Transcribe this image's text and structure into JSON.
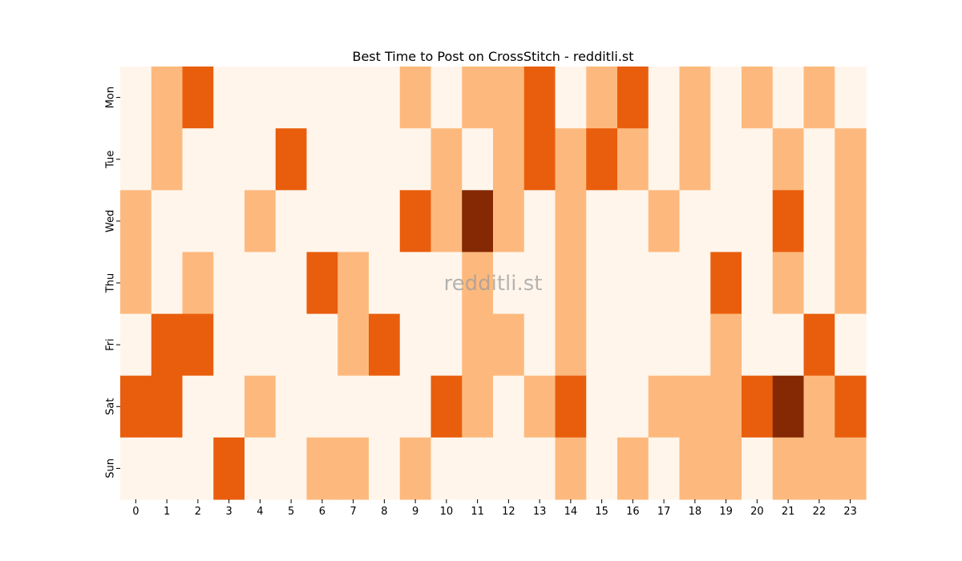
{
  "chart_data": {
    "type": "heatmap",
    "title": "Best Time to Post on CrossStitch - redditli.st",
    "watermark": "redditli.st",
    "xlabel": "",
    "ylabel": "",
    "x_categories": [
      "0",
      "1",
      "2",
      "3",
      "4",
      "5",
      "6",
      "7",
      "8",
      "9",
      "10",
      "11",
      "12",
      "13",
      "14",
      "15",
      "16",
      "17",
      "18",
      "19",
      "20",
      "21",
      "22",
      "23"
    ],
    "y_categories": [
      "Mon",
      "Tue",
      "Wed",
      "Thu",
      "Fri",
      "Sat",
      "Sun"
    ],
    "value_range": [
      0,
      3
    ],
    "colormap": {
      "name": "Oranges",
      "levels": [
        "#fff5eb",
        "#fdb97d",
        "#e95e0d",
        "#842904"
      ]
    },
    "values": [
      [
        0,
        1,
        2,
        0,
        0,
        0,
        0,
        0,
        0,
        1,
        0,
        1,
        1,
        2,
        0,
        1,
        2,
        0,
        1,
        0,
        1,
        0,
        1,
        0
      ],
      [
        0,
        1,
        0,
        0,
        0,
        2,
        0,
        0,
        0,
        0,
        1,
        0,
        1,
        2,
        1,
        2,
        1,
        0,
        1,
        0,
        0,
        1,
        0,
        1
      ],
      [
        1,
        0,
        0,
        0,
        1,
        0,
        0,
        0,
        0,
        2,
        1,
        3,
        1,
        0,
        1,
        0,
        0,
        1,
        0,
        0,
        0,
        2,
        0,
        1
      ],
      [
        1,
        0,
        1,
        0,
        0,
        0,
        2,
        1,
        0,
        0,
        0,
        1,
        0,
        0,
        1,
        0,
        0,
        0,
        0,
        2,
        0,
        1,
        0,
        1
      ],
      [
        0,
        2,
        2,
        0,
        0,
        0,
        0,
        1,
        2,
        0,
        0,
        1,
        1,
        0,
        1,
        0,
        0,
        0,
        0,
        1,
        0,
        0,
        2,
        0
      ],
      [
        2,
        2,
        0,
        0,
        1,
        0,
        0,
        0,
        0,
        0,
        2,
        1,
        0,
        1,
        2,
        0,
        0,
        1,
        1,
        1,
        2,
        3,
        1,
        2
      ],
      [
        0,
        0,
        0,
        2,
        0,
        0,
        1,
        1,
        0,
        1,
        0,
        0,
        0,
        0,
        1,
        0,
        1,
        0,
        1,
        1,
        0,
        1,
        1,
        1
      ]
    ]
  }
}
